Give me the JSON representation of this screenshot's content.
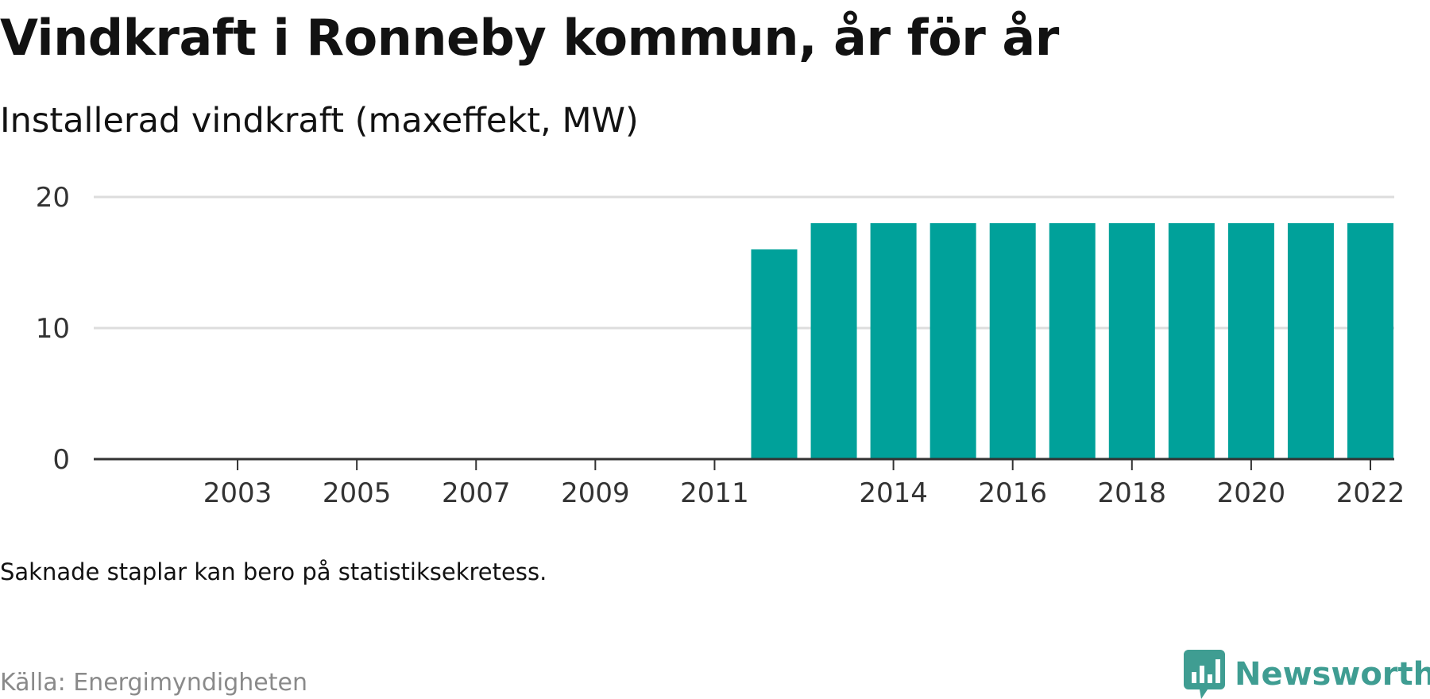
{
  "title": "Vindkraft i Ronneby kommun, år för år",
  "subtitle": "Installerad vindkraft (maxeffekt, MW)",
  "note": "Saknade staplar kan bero på statistiksekretess.",
  "source": "Källa: Energimyndigheten",
  "brand": {
    "name": "Newsworthy",
    "logo_icon": "newsworthy-speech-bubble-chart-icon",
    "color": "#3f9d92"
  },
  "colors": {
    "bar": "#00a19a",
    "gridline": "#dddddd",
    "axis": "#333333"
  },
  "chart_data": {
    "type": "bar",
    "categories": [
      2002,
      2003,
      2004,
      2005,
      2006,
      2007,
      2008,
      2009,
      2010,
      2011,
      2012,
      2013,
      2014,
      2015,
      2016,
      2017,
      2018,
      2019,
      2020,
      2021,
      2022
    ],
    "values": [
      null,
      null,
      null,
      null,
      null,
      null,
      null,
      null,
      null,
      null,
      16,
      18,
      18,
      18,
      18,
      18,
      18,
      18,
      18,
      18,
      18
    ],
    "x_tick_labels": [
      "2003",
      "2005",
      "2007",
      "2009",
      "2011",
      "2014",
      "2016",
      "2018",
      "2020",
      "2022"
    ],
    "y_ticks": [
      0,
      10,
      20
    ],
    "ylim": [
      0,
      20
    ],
    "grid": true,
    "legend": false,
    "title": "Vindkraft i Ronneby kommun, år för år",
    "subtitle": "Installerad vindkraft (maxeffekt, MW)",
    "xlabel": "",
    "ylabel": ""
  }
}
